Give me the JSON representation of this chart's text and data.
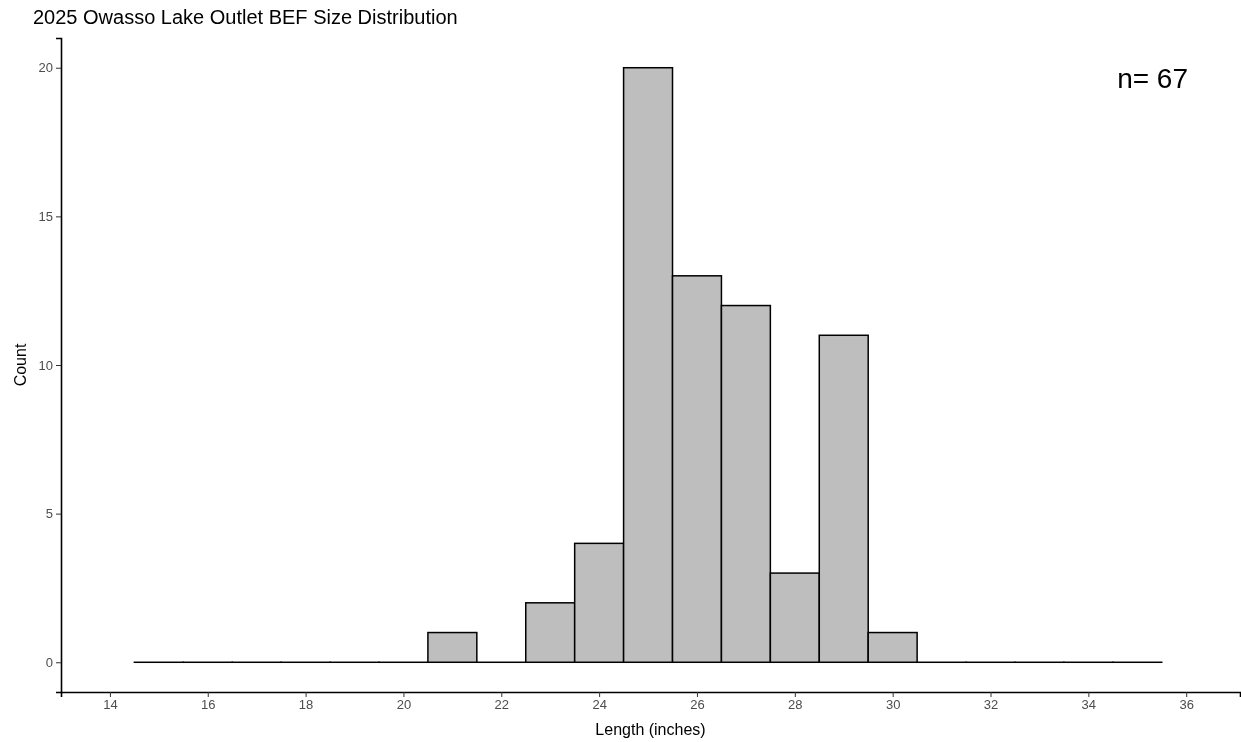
{
  "chart_data": {
    "type": "histogram",
    "title": "2025 Owasso Lake Outlet BEF Size Distribution",
    "xlabel": "Length (inches)",
    "ylabel": "Count",
    "bins": [
      14.5,
      15.5,
      16.5,
      17.5,
      18.5,
      19.5,
      20.5,
      21.5,
      22.5,
      23.5,
      24.5,
      25.5,
      26.5,
      27.5,
      28.5,
      29.5,
      30.5,
      31.5,
      32.5,
      33.5,
      34.5,
      35.5
    ],
    "values": [
      0,
      0,
      0,
      0,
      0,
      0,
      1,
      0,
      2,
      4,
      20,
      13,
      12,
      3,
      11,
      1,
      0,
      0,
      0,
      0,
      0
    ],
    "colors": [
      "#000000",
      "#000000",
      "#000000",
      "#000000",
      "#000000",
      "#000000",
      "#bebebe",
      "#000000",
      "#bebebe",
      "#bebebe",
      "#bebebe",
      "#bebebe",
      "#bebebe",
      "#bebebe",
      "#bebebe",
      "#bebebe",
      "#000000",
      "#000000",
      "#000000",
      "#000000",
      "#000000"
    ],
    "xlim": [
      13,
      37.1
    ],
    "xticks": [
      14,
      16,
      18,
      20,
      22,
      24,
      26,
      28,
      30,
      32,
      34,
      36
    ],
    "ylim": [
      -1,
      21
    ],
    "yticks": [
      0,
      5,
      10,
      15,
      20
    ],
    "grid": false,
    "annotations": [
      "n= 67"
    ]
  }
}
